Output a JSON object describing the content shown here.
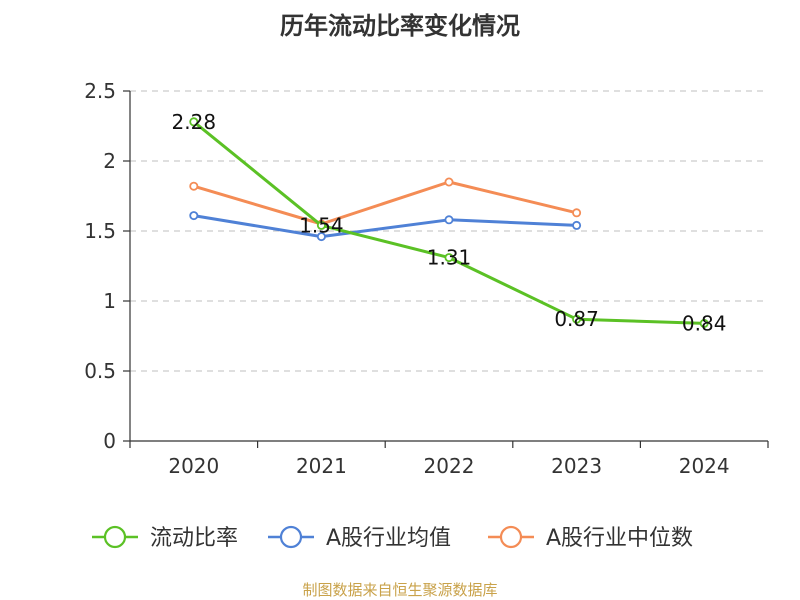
{
  "chart_data": {
    "type": "line",
    "title": "历年流动比率变化情况",
    "categories": [
      "2020",
      "2021",
      "2022",
      "2023",
      "2024"
    ],
    "ylim": [
      0,
      2.5
    ],
    "yticks": [
      "0",
      "0.5",
      "1",
      "1.5",
      "2",
      "2.5"
    ],
    "series": [
      {
        "name": "流动比率",
        "color": "#5bc125",
        "values": [
          2.28,
          1.54,
          1.31,
          0.87,
          0.84
        ],
        "labels": [
          "2.28",
          "1.54",
          "1.31",
          "0.87",
          "0.84"
        ]
      },
      {
        "name": "A股行业均值",
        "color": "#4f81d6",
        "values": [
          1.61,
          1.46,
          1.58,
          1.54,
          null
        ]
      },
      {
        "name": "A股行业中位数",
        "color": "#f48c55",
        "values": [
          1.82,
          1.55,
          1.85,
          1.63,
          null
        ]
      }
    ],
    "grid": true,
    "legend_position": "bottom"
  },
  "footer": {
    "source": "制图数据来自恒生聚源数据库"
  }
}
